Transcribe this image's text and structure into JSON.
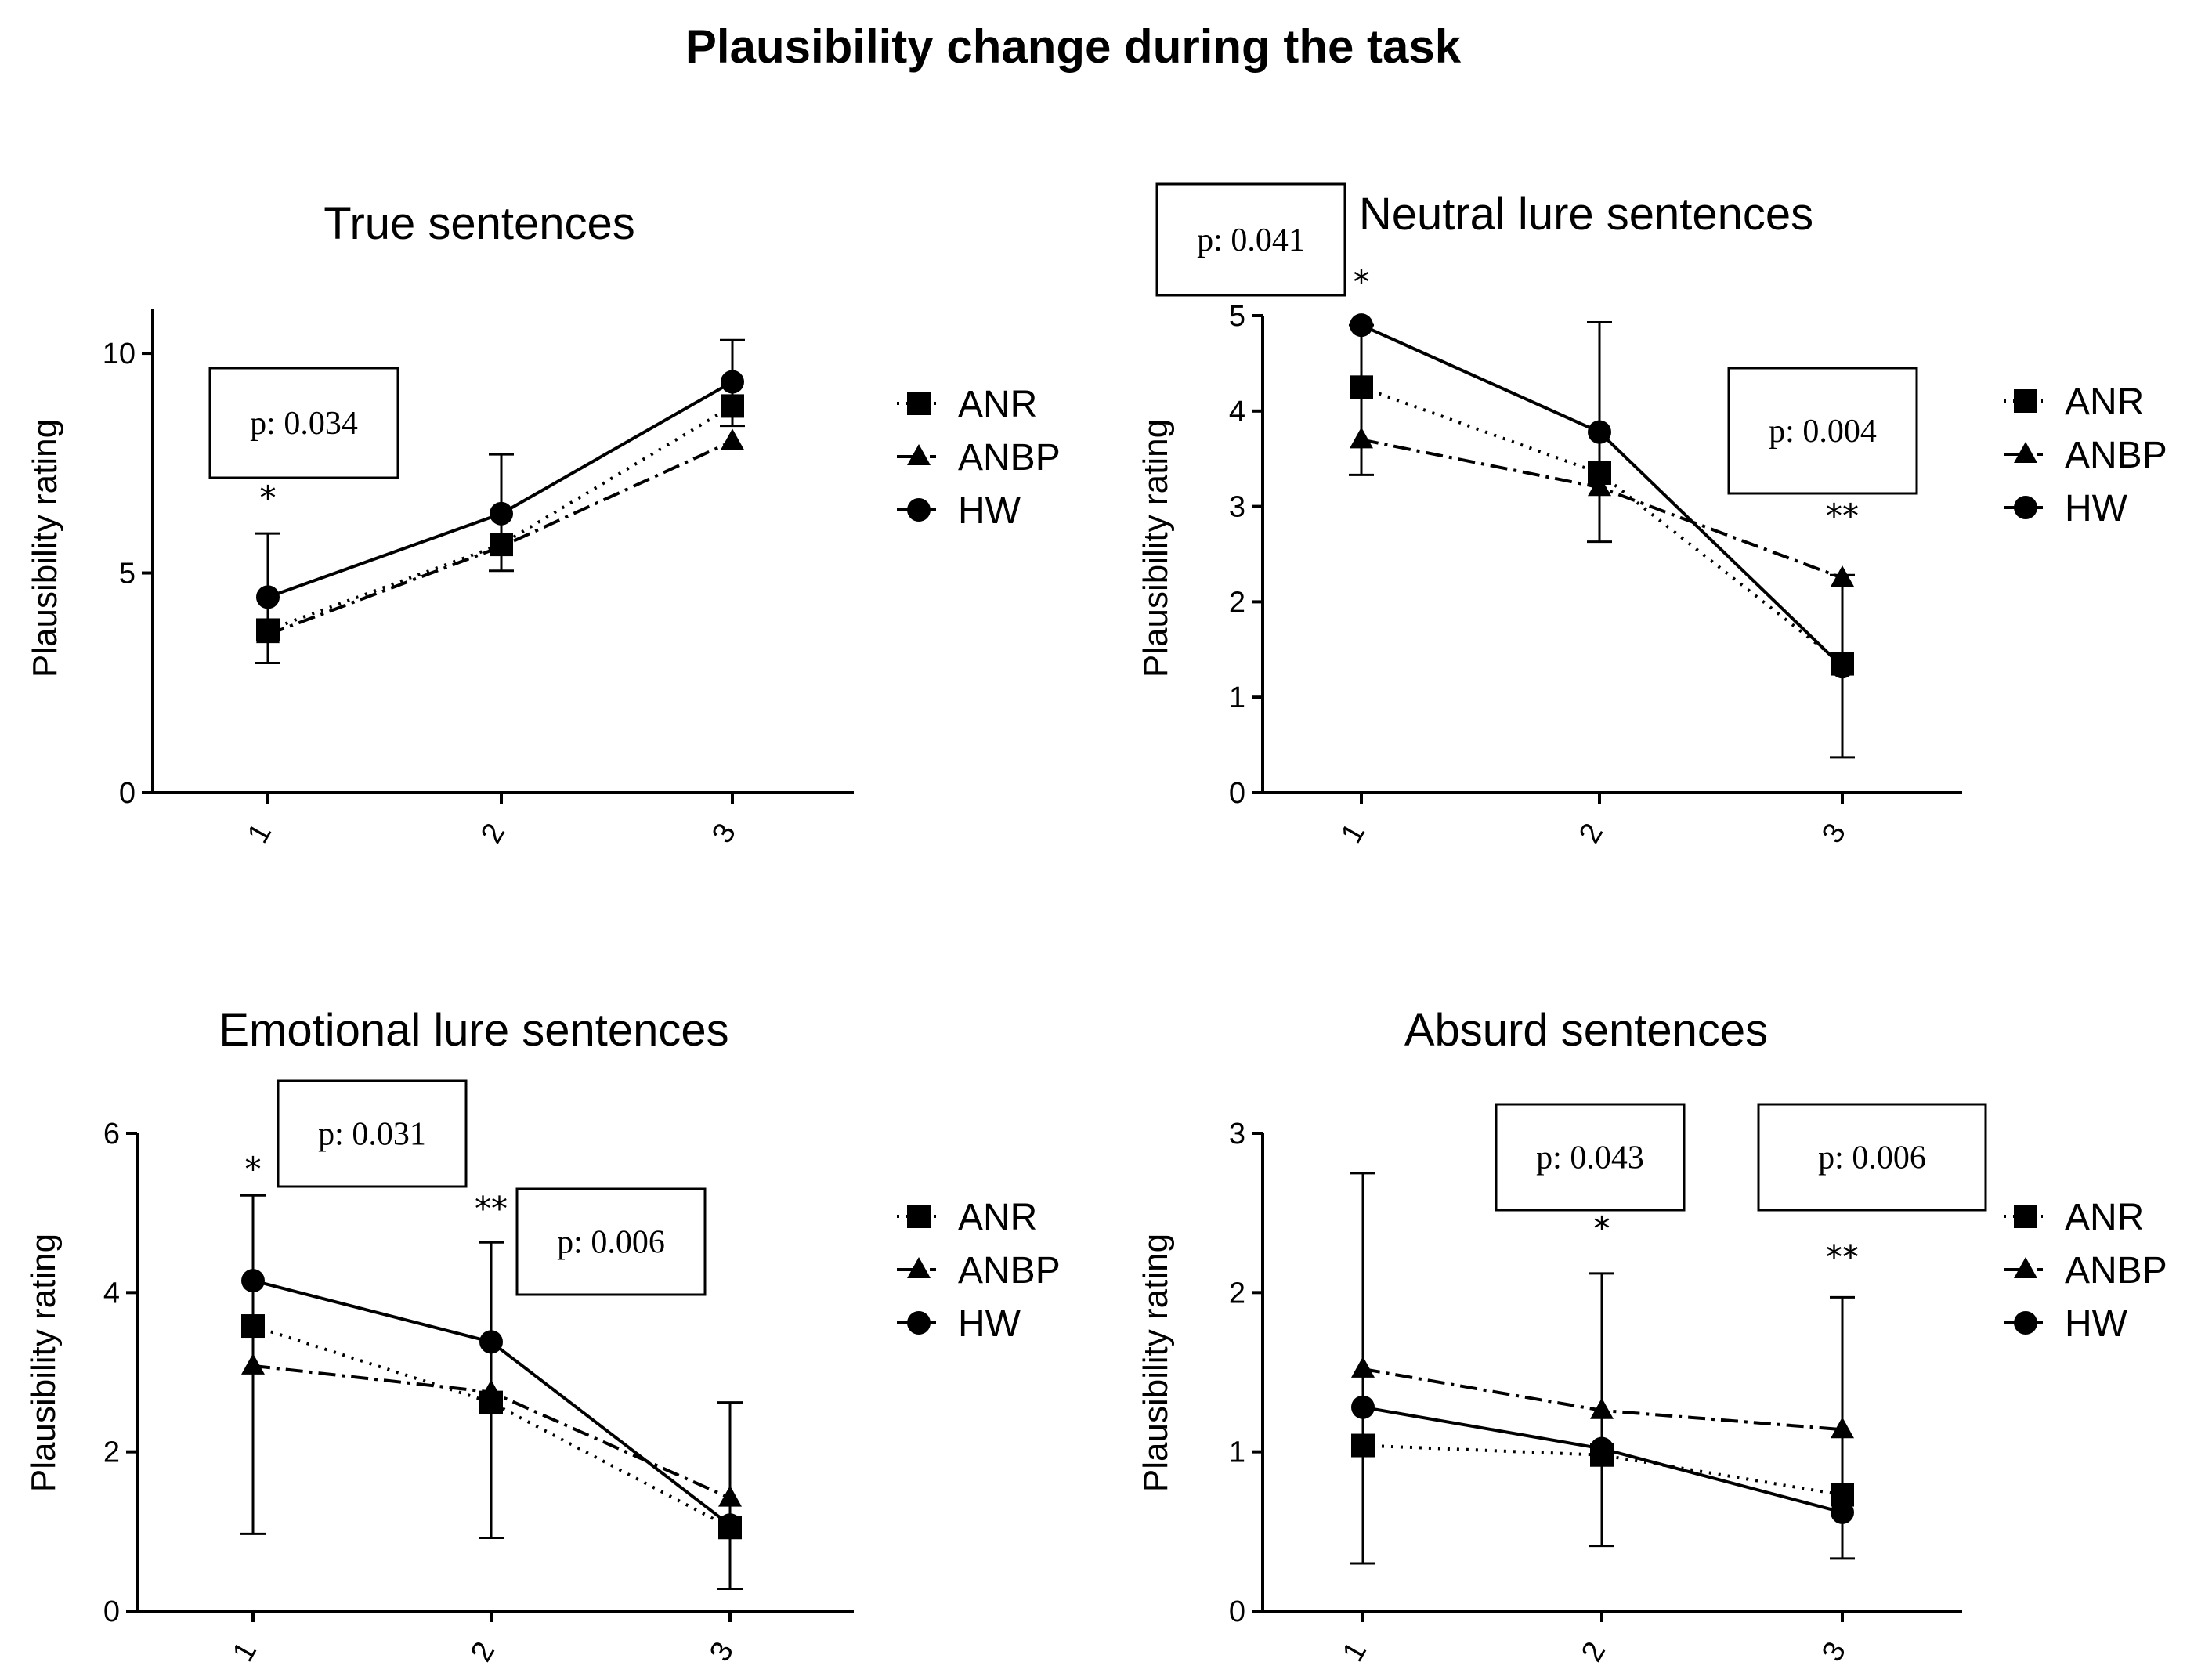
{
  "chart_data": {
    "title": "Plausibility change during the task",
    "legend_position": "right",
    "series_styles": [
      {
        "name": "ANR",
        "marker": "square",
        "line": "dotted"
      },
      {
        "name": "ANBP",
        "marker": "triangle",
        "line": "dash-dot"
      },
      {
        "name": "HW",
        "marker": "circle",
        "line": "solid"
      }
    ],
    "panels": [
      {
        "type": "line",
        "title": "True sentences",
        "ylabel": "Plausibility rating",
        "xlabel": "",
        "categories": [
          "1",
          "2",
          "3"
        ],
        "ylim": [
          0,
          11
        ],
        "yticks": [
          0,
          5,
          10
        ],
        "series": [
          {
            "name": "ANR",
            "values": [
              3.7,
              5.65,
              8.8
            ]
          },
          {
            "name": "ANBP",
            "values": [
              3.6,
              5.6,
              8.0
            ]
          },
          {
            "name": "HW",
            "values": [
              4.45,
              6.35,
              9.35
            ]
          }
        ],
        "errorbars": [
          {
            "x": "1",
            "center": 4.45,
            "up": 5.9,
            "down": 2.95
          },
          {
            "x": "2",
            "center": 6.35,
            "up": 7.7,
            "down": 5.05
          },
          {
            "x": "3",
            "center": 9.35,
            "up": 10.3,
            "down": 8.35
          }
        ],
        "annotations": [
          {
            "category": "1",
            "sig": "*",
            "sig_y": 6.7,
            "pvalue": "p: 0.034"
          }
        ]
      },
      {
        "type": "line",
        "title": "Neutral lure sentences",
        "ylabel": "Plausibility rating",
        "xlabel": "",
        "categories": [
          "1",
          "2",
          "3"
        ],
        "ylim": [
          0,
          5
        ],
        "yticks": [
          0,
          1,
          2,
          3,
          4,
          5
        ],
        "series": [
          {
            "name": "ANR",
            "values": [
              4.25,
              3.35,
              1.35
            ]
          },
          {
            "name": "ANBP",
            "values": [
              3.7,
              3.2,
              2.25
            ]
          },
          {
            "name": "HW",
            "values": [
              4.9,
              3.78,
              1.32
            ]
          }
        ],
        "errorbars": [
          {
            "x": "1",
            "center": 4.25,
            "up": 4.9,
            "down": 3.33
          },
          {
            "x": "2",
            "center": 3.78,
            "up": 4.93,
            "down": 2.63
          },
          {
            "x": "3",
            "center": 1.35,
            "up": 2.28,
            "down": 0.37
          }
        ],
        "annotations": [
          {
            "category": "1",
            "sig": "*",
            "sig_y": 5.35,
            "pvalue": "p: 0.041"
          },
          {
            "category": "3",
            "sig": "**",
            "sig_y": 2.9,
            "pvalue": "p: 0.004"
          }
        ]
      },
      {
        "type": "line",
        "title": "Emotional lure sentences",
        "ylabel": "Plausibility rating",
        "xlabel": "",
        "categories": [
          "1",
          "2",
          "3"
        ],
        "ylim": [
          0,
          6
        ],
        "yticks": [
          0,
          2,
          4,
          6
        ],
        "series": [
          {
            "name": "ANR",
            "values": [
              3.58,
              2.62,
              1.05
            ]
          },
          {
            "name": "ANBP",
            "values": [
              3.08,
              2.75,
              1.42
            ]
          },
          {
            "name": "HW",
            "values": [
              4.15,
              3.38,
              1.08
            ]
          }
        ],
        "errorbars": [
          {
            "x": "1",
            "center": 4.15,
            "up": 5.22,
            "down": 0.97
          },
          {
            "x": "2",
            "center": 3.38,
            "up": 4.63,
            "down": 0.92
          },
          {
            "x": "3",
            "center": 1.42,
            "up": 2.62,
            "down": 0.28
          }
        ],
        "annotations": [
          {
            "category": "1",
            "sig": "*",
            "sig_y": 5.55,
            "pvalue": "p: 0.031"
          },
          {
            "category": "2",
            "sig": "**",
            "sig_y": 5.05,
            "pvalue": "p: 0.006"
          }
        ]
      },
      {
        "type": "line",
        "title": "Absurd sentences",
        "ylabel": "Plausibility rating",
        "xlabel": "",
        "categories": [
          "1",
          "2",
          "3"
        ],
        "ylim": [
          0,
          3
        ],
        "yticks": [
          0,
          1,
          2,
          3
        ],
        "series": [
          {
            "name": "ANR",
            "values": [
              1.04,
              0.98,
              0.73
            ]
          },
          {
            "name": "ANBP",
            "values": [
              1.52,
              1.26,
              1.14
            ]
          },
          {
            "name": "HW",
            "values": [
              1.28,
              1.02,
              0.62
            ]
          }
        ],
        "errorbars": [
          {
            "x": "1",
            "center": 1.52,
            "up": 2.75,
            "down": 0.3
          },
          {
            "x": "2",
            "center": 1.26,
            "up": 2.12,
            "down": 0.41
          },
          {
            "x": "3",
            "center": 1.14,
            "up": 1.97,
            "down": 0.33
          }
        ],
        "annotations": [
          {
            "category": "2",
            "sig": "*",
            "sig_y": 2.4,
            "pvalue": "p: 0.043"
          },
          {
            "category": "3",
            "sig": "**",
            "sig_y": 2.22,
            "pvalue": "p: 0.006"
          }
        ]
      }
    ]
  }
}
